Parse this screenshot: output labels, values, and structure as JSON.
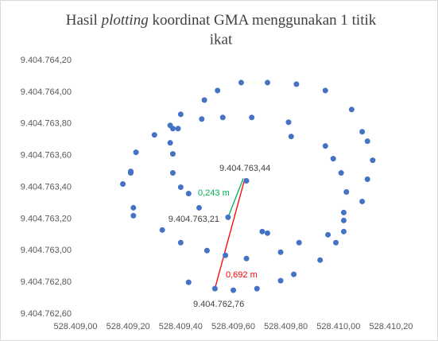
{
  "chart_data": {
    "type": "scatter",
    "title": [
      "Hasil",
      "plotting",
      "koordinat  GMA  menggunakan  1  titik",
      "ikat"
    ],
    "color": "#4472c4",
    "grid": false,
    "x": [
      528409.65,
      528409.58,
      528409.53,
      528409.63,
      528409.73,
      528409.84,
      528409.54,
      528409.95,
      528409.49,
      528409.4,
      528409.67,
      528410.05,
      528409.48,
      528409.56,
      528409.81,
      528409.36,
      528409.37,
      528409.39,
      528409.3,
      528409.82,
      528410.09,
      528410.11,
      528409.36,
      528409.95,
      528409.23,
      528409.37,
      528409.98,
      528410.13,
      528409.21,
      528409.21,
      528409.37,
      528410.01,
      528409.18,
      528410.11,
      528409.4,
      528409.43,
      528410.03,
      528410.09,
      528409.22,
      528409.47,
      528410.02,
      528409.22,
      528410.02,
      528409.33,
      528410.02,
      528409.71,
      528409.73,
      528409.96,
      528409.4,
      528409.85,
      528409.99,
      528409.5,
      528409.78,
      528409.57,
      528409.65,
      528409.93,
      528409.83,
      528409.43,
      528409.78,
      528409.69,
      528409.6
    ],
    "y": [
      9404763.44,
      9404763.21,
      9404762.76,
      9404764.06,
      9404764.06,
      9404764.05,
      9404764.01,
      9404764.01,
      9404763.95,
      9404763.86,
      9404763.84,
      9404763.89,
      9404763.83,
      9404763.84,
      9404763.81,
      9404763.79,
      9404763.77,
      9404763.77,
      9404763.73,
      9404763.72,
      9404763.75,
      9404763.69,
      9404763.68,
      9404763.66,
      9404763.62,
      9404763.61,
      9404763.58,
      9404763.57,
      9404763.5,
      9404763.49,
      9404763.49,
      9404763.49,
      9404763.42,
      9404763.45,
      9404763.4,
      9404763.36,
      9404763.37,
      9404763.31,
      9404763.27,
      9404763.27,
      9404763.24,
      9404763.22,
      9404763.19,
      9404763.13,
      9404763.12,
      9404763.12,
      9404763.11,
      9404763.1,
      9404763.05,
      9404763.05,
      9404763.05,
      9404763.0,
      9404762.99,
      9404762.97,
      9404762.95,
      9404762.94,
      9404762.85,
      9404762.8,
      9404762.81,
      9404762.76,
      9404762.75
    ],
    "xlim": [
      528409.0,
      528410.2
    ],
    "xticks": [
      {
        "value": 528409.0,
        "label": "528.409,00"
      },
      {
        "value": 528409.2,
        "label": "528.409,20"
      },
      {
        "value": 528409.4,
        "label": "528.409,40"
      },
      {
        "value": 528409.6,
        "label": "528.409,60"
      },
      {
        "value": 528409.8,
        "label": "528.409,80"
      },
      {
        "value": 528410.0,
        "label": "528.410,00"
      },
      {
        "value": 528410.2,
        "label": "528.410,20"
      }
    ],
    "ylim": [
      9404762.6,
      9404764.2
    ],
    "yticks": [
      {
        "value": 9404762.6,
        "label": "9.404.762,60"
      },
      {
        "value": 9404762.8,
        "label": "9.404.762,80"
      },
      {
        "value": 9404763.0,
        "label": "9.404.763,00"
      },
      {
        "value": 9404763.2,
        "label": "9.404.763,20"
      },
      {
        "value": 9404763.4,
        "label": "9.404.763,40"
      },
      {
        "value": 9404763.6,
        "label": "9.404.763,60"
      },
      {
        "value": 9404763.8,
        "label": "9.404.763,80"
      },
      {
        "value": 9404764.0,
        "label": "9.404.764,00"
      },
      {
        "value": 9404764.2,
        "label": "9.404.764,20"
      }
    ],
    "annotations": [
      {
        "text": "9.404.763,44",
        "color": "#404040"
      },
      {
        "text": "9.404.763,21",
        "color": "#404040"
      },
      {
        "text": "9.404.762,76",
        "color": "#404040"
      },
      {
        "text": "0,243 m",
        "color": "#00b050"
      },
      {
        "text": "0,692 m",
        "color": "#ff0000"
      }
    ]
  }
}
